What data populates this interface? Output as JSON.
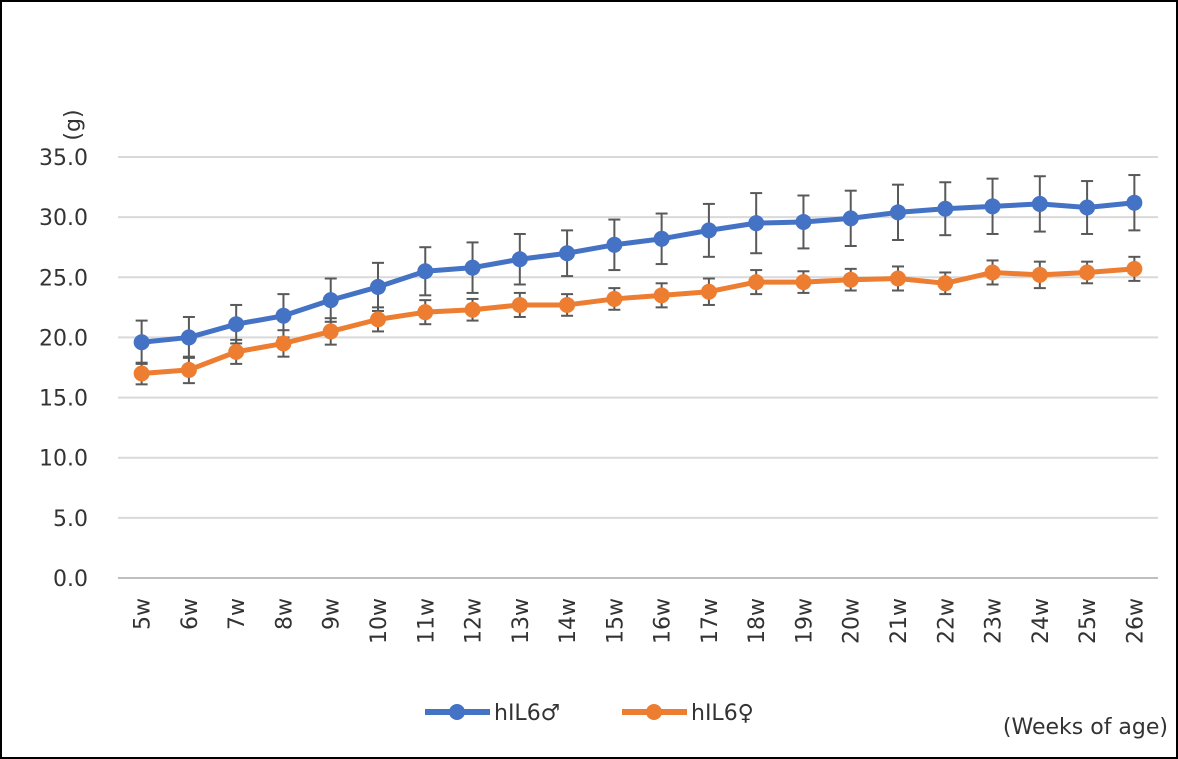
{
  "chart_data": {
    "type": "line",
    "ylabel": "(g)",
    "xlabel": "(Weeks of age)",
    "ylim": [
      0,
      35
    ],
    "yticks": [
      "0.0",
      "5.0",
      "10.0",
      "15.0",
      "20.0",
      "25.0",
      "30.0",
      "35.0"
    ],
    "grid": true,
    "legend_position": "bottom",
    "categories": [
      "5w",
      "6w",
      "7w",
      "8w",
      "9w",
      "10w",
      "11w",
      "12w",
      "13w",
      "14w",
      "15w",
      "16w",
      "17w",
      "18w",
      "19w",
      "20w",
      "21w",
      "22w",
      "23w",
      "24w",
      "25w",
      "26w"
    ],
    "series": [
      {
        "name": "hIL6♂",
        "color": "#4472C4",
        "values": [
          19.6,
          20.0,
          21.1,
          21.8,
          23.1,
          24.2,
          25.5,
          25.8,
          26.5,
          27.0,
          27.7,
          28.2,
          28.9,
          29.5,
          29.6,
          29.9,
          30.4,
          30.7,
          30.9,
          31.1,
          30.8,
          31.2
        ],
        "error": [
          1.8,
          1.7,
          1.6,
          1.8,
          1.8,
          2.0,
          2.0,
          2.1,
          2.1,
          1.9,
          2.1,
          2.1,
          2.2,
          2.5,
          2.2,
          2.3,
          2.3,
          2.2,
          2.3,
          2.3,
          2.2,
          2.3
        ]
      },
      {
        "name": "hIL6♀",
        "color": "#ED7D31",
        "values": [
          17.0,
          17.3,
          18.8,
          19.5,
          20.5,
          21.5,
          22.1,
          22.3,
          22.7,
          22.7,
          23.2,
          23.5,
          23.8,
          24.6,
          24.6,
          24.8,
          24.9,
          24.5,
          25.4,
          25.2,
          25.4,
          25.7
        ],
        "error": [
          0.9,
          1.1,
          1.0,
          1.1,
          1.1,
          1.0,
          1.0,
          0.9,
          1.0,
          0.9,
          0.9,
          1.0,
          1.1,
          1.0,
          0.9,
          0.9,
          1.0,
          0.9,
          1.0,
          1.1,
          0.9,
          1.0
        ]
      }
    ]
  }
}
